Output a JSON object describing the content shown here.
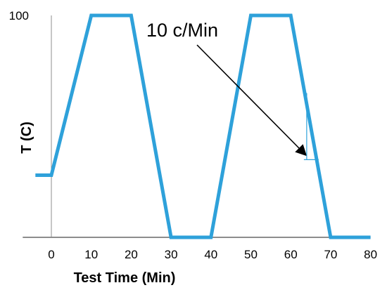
{
  "chart_data": {
    "type": "line",
    "xlabel": "Test Time (Min)",
    "ylabel": "T (C)",
    "xlim": [
      -4,
      80
    ],
    "ylim": [
      0,
      100
    ],
    "x_ticks": [
      "0",
      "10",
      "20",
      "30",
      "40",
      "50",
      "60",
      "70",
      "80"
    ],
    "y_ticks": [
      "100"
    ],
    "grid": false,
    "legend": "none",
    "series": [
      {
        "color": "#2ea1da",
        "x": [
          -4,
          0,
          10,
          20,
          30,
          40,
          50,
          60,
          70,
          80
        ],
        "y": [
          28,
          28,
          100,
          100,
          0,
          0,
          100,
          100,
          0,
          0
        ]
      }
    ],
    "annotation": {
      "text": "10 c/Min",
      "arrow_to": [
        64,
        50
      ],
      "slope_marker": {
        "x": 64,
        "y_top": 65,
        "y_bottom": 35,
        "x_end": 67
      }
    },
    "axis_color": "#8c8c8c",
    "marker_color": "#2ea1da"
  }
}
